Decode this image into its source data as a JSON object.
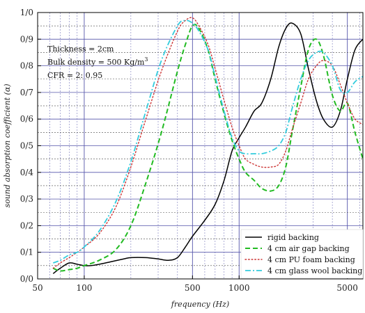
{
  "chart_data": {
    "type": "line",
    "title": "",
    "xlabel": "frequency (Hz)",
    "ylabel": "sound absorption coefficient (α)",
    "x_scale": "log",
    "xlim": [
      50,
      6300
    ],
    "ylim": [
      0,
      1
    ],
    "x_ticks": [
      {
        "value": 50,
        "label": "50"
      },
      {
        "value": 100,
        "label": "100"
      },
      {
        "value": 500,
        "label": "500"
      },
      {
        "value": 1000,
        "label": "1000"
      },
      {
        "value": 5000,
        "label": "5000"
      }
    ],
    "y_ticks": [
      {
        "value": 0.0,
        "label": "0/0"
      },
      {
        "value": 0.1,
        "label": "0/1"
      },
      {
        "value": 0.2,
        "label": "0/2"
      },
      {
        "value": 0.3,
        "label": "0/3"
      },
      {
        "value": 0.4,
        "label": "0/4"
      },
      {
        "value": 0.5,
        "label": "0/5"
      },
      {
        "value": 0.6,
        "label": "0/6"
      },
      {
        "value": 0.7,
        "label": "0/7"
      },
      {
        "value": 0.8,
        "label": "0/8"
      },
      {
        "value": 0.9,
        "label": "0/9"
      },
      {
        "value": 1.0,
        "label": "1/0"
      }
    ],
    "grid": true,
    "legend_position": "bottom-right",
    "annotation": {
      "thickness": "Thickness = 2cm",
      "density_prefix": "Bulk density = 500 Kg/m",
      "density_sup": "3",
      "cfr": "CFR = 2: 0.95"
    },
    "series": [
      {
        "name": "rigid backing",
        "color": "#000000",
        "dash": "solid",
        "x": [
          63,
          70,
          80,
          90,
          100,
          110,
          125,
          150,
          180,
          200,
          250,
          300,
          350,
          400,
          450,
          500,
          600,
          700,
          800,
          900,
          1000,
          1100,
          1250,
          1400,
          1600,
          1800,
          2000,
          2200,
          2500,
          2800,
          3150,
          3500,
          4000,
          4500,
          5000,
          5600,
          6300
        ],
        "y": [
          0.02,
          0.04,
          0.06,
          0.055,
          0.05,
          0.05,
          0.055,
          0.065,
          0.075,
          0.08,
          0.08,
          0.075,
          0.07,
          0.08,
          0.12,
          0.16,
          0.22,
          0.28,
          0.37,
          0.48,
          0.53,
          0.57,
          0.63,
          0.66,
          0.75,
          0.87,
          0.94,
          0.96,
          0.92,
          0.79,
          0.67,
          0.6,
          0.57,
          0.63,
          0.75,
          0.86,
          0.9
        ]
      },
      {
        "name": "4 cm air gap backing",
        "color": "#22bb22",
        "dash": "dashed",
        "x": [
          63,
          70,
          80,
          90,
          100,
          125,
          160,
          200,
          250,
          315,
          400,
          450,
          500,
          550,
          630,
          700,
          800,
          900,
          1000,
          1100,
          1250,
          1400,
          1600,
          1800,
          2000,
          2200,
          2500,
          2800,
          3150,
          3500,
          4000,
          4500,
          5000,
          5600,
          6300
        ],
        "y": [
          0.04,
          0.03,
          0.035,
          0.04,
          0.05,
          0.07,
          0.11,
          0.2,
          0.36,
          0.55,
          0.78,
          0.88,
          0.95,
          0.94,
          0.86,
          0.75,
          0.62,
          0.52,
          0.45,
          0.4,
          0.37,
          0.34,
          0.33,
          0.35,
          0.42,
          0.55,
          0.72,
          0.86,
          0.9,
          0.84,
          0.69,
          0.63,
          0.66,
          0.55,
          0.45
        ]
      },
      {
        "name": "4 cm PU foam backing",
        "color": "#cc3333",
        "dash": "dotted",
        "x": [
          63,
          70,
          80,
          90,
          100,
          125,
          160,
          200,
          250,
          315,
          400,
          450,
          500,
          550,
          630,
          700,
          800,
          900,
          1000,
          1100,
          1250,
          1400,
          1600,
          1800,
          2000,
          2200,
          2500,
          2800,
          3150,
          3500,
          4000,
          4500,
          5000,
          5600,
          6300
        ],
        "y": [
          0.04,
          0.06,
          0.08,
          0.1,
          0.12,
          0.17,
          0.27,
          0.42,
          0.6,
          0.78,
          0.93,
          0.97,
          0.98,
          0.95,
          0.88,
          0.79,
          0.67,
          0.57,
          0.5,
          0.45,
          0.43,
          0.42,
          0.42,
          0.43,
          0.48,
          0.56,
          0.66,
          0.75,
          0.8,
          0.82,
          0.8,
          0.73,
          0.66,
          0.6,
          0.58
        ]
      },
      {
        "name": "4 cm glass wool backing",
        "color": "#33ccdd",
        "dash": "dashdot",
        "x": [
          63,
          70,
          80,
          90,
          100,
          125,
          160,
          200,
          250,
          315,
          400,
          450,
          500,
          550,
          630,
          700,
          800,
          900,
          1000,
          1100,
          1250,
          1400,
          1600,
          1800,
          2000,
          2200,
          2500,
          2800,
          3150,
          3500,
          4000,
          4500,
          5000,
          5600,
          6300
        ],
        "y": [
          0.06,
          0.07,
          0.09,
          0.1,
          0.12,
          0.18,
          0.29,
          0.44,
          0.63,
          0.82,
          0.95,
          0.97,
          0.96,
          0.93,
          0.86,
          0.76,
          0.63,
          0.53,
          0.48,
          0.47,
          0.47,
          0.47,
          0.48,
          0.5,
          0.55,
          0.64,
          0.75,
          0.82,
          0.85,
          0.85,
          0.8,
          0.71,
          0.7,
          0.74,
          0.76
        ]
      }
    ]
  }
}
